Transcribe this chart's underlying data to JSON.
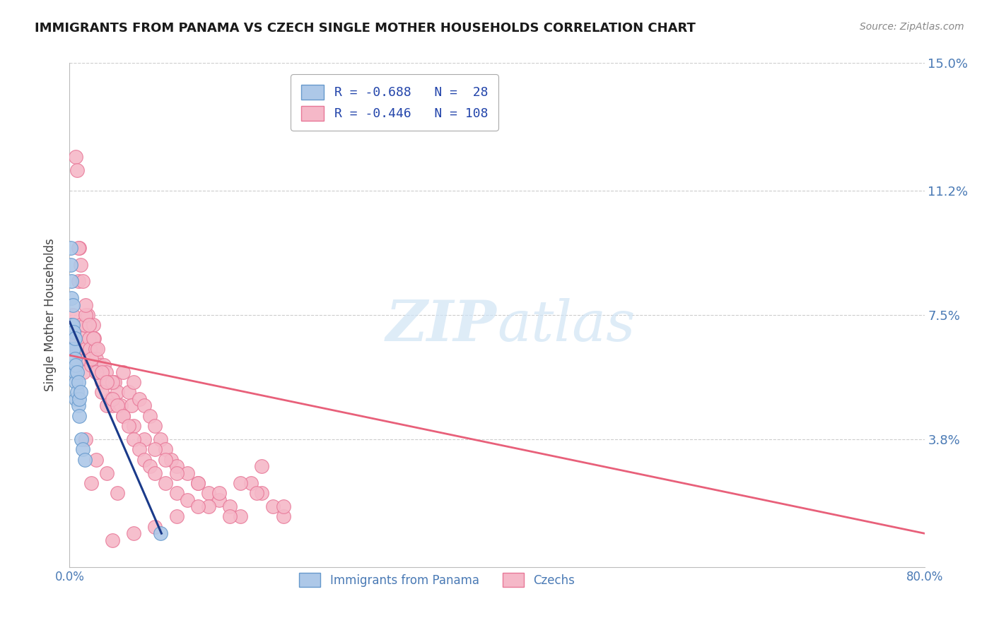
{
  "title": "IMMIGRANTS FROM PANAMA VS CZECH SINGLE MOTHER HOUSEHOLDS CORRELATION CHART",
  "source": "Source: ZipAtlas.com",
  "ylabel": "Single Mother Households",
  "x_min": 0.0,
  "x_max": 0.8,
  "y_min": 0.0,
  "y_max": 0.15,
  "y_tick_labels": [
    "15.0%",
    "11.2%",
    "7.5%",
    "3.8%"
  ],
  "y_tick_vals": [
    0.15,
    0.112,
    0.075,
    0.038
  ],
  "panama_color": "#adc8e8",
  "panama_edge_color": "#6699cc",
  "czech_color": "#f5b8c8",
  "czech_edge_color": "#e87898",
  "panama_line_color": "#1a3a8a",
  "czech_line_color": "#e8607a",
  "watermark_color": "#d0e4f5",
  "panama_scatter_x": [
    0.001,
    0.001,
    0.002,
    0.002,
    0.002,
    0.003,
    0.003,
    0.003,
    0.004,
    0.004,
    0.004,
    0.005,
    0.005,
    0.005,
    0.006,
    0.006,
    0.006,
    0.007,
    0.007,
    0.008,
    0.008,
    0.009,
    0.009,
    0.01,
    0.011,
    0.012,
    0.014,
    0.085
  ],
  "panama_scatter_y": [
    0.095,
    0.09,
    0.085,
    0.08,
    0.072,
    0.078,
    0.072,
    0.065,
    0.07,
    0.065,
    0.06,
    0.068,
    0.062,
    0.058,
    0.06,
    0.055,
    0.05,
    0.058,
    0.052,
    0.055,
    0.048,
    0.05,
    0.045,
    0.052,
    0.038,
    0.035,
    0.032,
    0.01
  ],
  "czech_scatter_x": [
    0.003,
    0.004,
    0.005,
    0.006,
    0.007,
    0.008,
    0.009,
    0.01,
    0.011,
    0.012,
    0.013,
    0.014,
    0.015,
    0.016,
    0.017,
    0.018,
    0.019,
    0.02,
    0.022,
    0.023,
    0.024,
    0.025,
    0.026,
    0.028,
    0.03,
    0.032,
    0.034,
    0.036,
    0.038,
    0.04,
    0.042,
    0.045,
    0.048,
    0.05,
    0.055,
    0.058,
    0.06,
    0.065,
    0.07,
    0.075,
    0.08,
    0.085,
    0.09,
    0.095,
    0.1,
    0.11,
    0.12,
    0.13,
    0.14,
    0.15,
    0.16,
    0.17,
    0.18,
    0.19,
    0.2,
    0.015,
    0.02,
    0.025,
    0.03,
    0.035,
    0.04,
    0.05,
    0.06,
    0.07,
    0.08,
    0.09,
    0.1,
    0.12,
    0.008,
    0.01,
    0.012,
    0.015,
    0.018,
    0.022,
    0.026,
    0.03,
    0.035,
    0.04,
    0.045,
    0.05,
    0.055,
    0.06,
    0.065,
    0.07,
    0.075,
    0.08,
    0.09,
    0.1,
    0.11,
    0.13,
    0.15,
    0.175,
    0.2,
    0.18,
    0.16,
    0.14,
    0.12,
    0.1,
    0.08,
    0.06,
    0.04,
    0.02,
    0.015,
    0.025,
    0.035,
    0.045
  ],
  "czech_scatter_y": [
    0.075,
    0.065,
    0.068,
    0.122,
    0.118,
    0.085,
    0.095,
    0.072,
    0.068,
    0.062,
    0.058,
    0.072,
    0.065,
    0.062,
    0.075,
    0.068,
    0.065,
    0.06,
    0.072,
    0.068,
    0.065,
    0.062,
    0.058,
    0.06,
    0.055,
    0.06,
    0.058,
    0.055,
    0.05,
    0.048,
    0.055,
    0.052,
    0.048,
    0.058,
    0.052,
    0.048,
    0.055,
    0.05,
    0.048,
    0.045,
    0.042,
    0.038,
    0.035,
    0.032,
    0.03,
    0.028,
    0.025,
    0.022,
    0.02,
    0.018,
    0.015,
    0.025,
    0.022,
    0.018,
    0.015,
    0.075,
    0.062,
    0.058,
    0.052,
    0.048,
    0.055,
    0.045,
    0.042,
    0.038,
    0.035,
    0.032,
    0.028,
    0.025,
    0.095,
    0.09,
    0.085,
    0.078,
    0.072,
    0.068,
    0.065,
    0.058,
    0.055,
    0.05,
    0.048,
    0.045,
    0.042,
    0.038,
    0.035,
    0.032,
    0.03,
    0.028,
    0.025,
    0.022,
    0.02,
    0.018,
    0.015,
    0.022,
    0.018,
    0.03,
    0.025,
    0.022,
    0.018,
    0.015,
    0.012,
    0.01,
    0.008,
    0.025,
    0.038,
    0.032,
    0.028,
    0.022
  ],
  "czech_line_x": [
    0.0,
    0.8
  ],
  "czech_line_y": [
    0.063,
    0.01
  ],
  "panama_line_x": [
    0.0,
    0.086
  ],
  "panama_line_y": [
    0.073,
    0.01
  ]
}
